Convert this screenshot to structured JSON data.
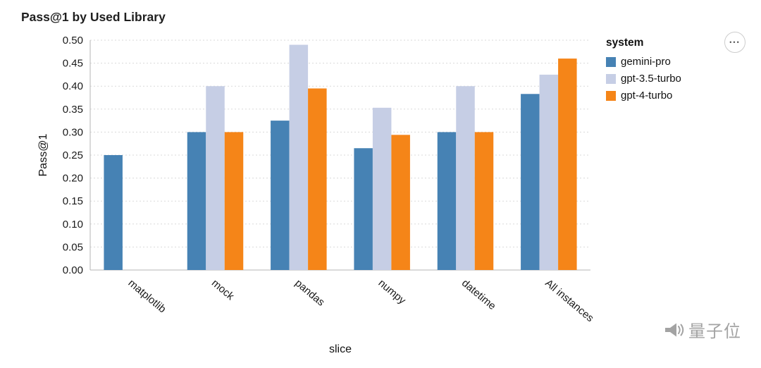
{
  "chart_data": {
    "type": "bar",
    "title": "Pass@1 by Used Library",
    "xlabel": "slice",
    "ylabel": "Pass@1",
    "ylim": [
      0,
      0.5
    ],
    "ytick_step": 0.05,
    "grid": true,
    "legend_position": "right",
    "legend_title": "system",
    "categories": [
      "matplotlib",
      "mock",
      "pandas",
      "numpy",
      "datetime",
      "All instances"
    ],
    "series": [
      {
        "name": "gemini-pro",
        "color": "#4682b4",
        "values": [
          0.25,
          0.3,
          0.325,
          0.265,
          0.3,
          0.383
        ]
      },
      {
        "name": "gpt-3.5-turbo",
        "color": "#c6cee5",
        "values": [
          0,
          0.4,
          0.49,
          0.353,
          0.4,
          0.425
        ]
      },
      {
        "name": "gpt-4-turbo",
        "color": "#f58518",
        "values": [
          0,
          0.3,
          0.395,
          0.294,
          0.3,
          0.46
        ]
      }
    ],
    "axis_color": "#b5b5b5",
    "grid_color": "#d9d9d9",
    "text_color": "#1a1a1a"
  },
  "actions": {
    "menu_icon": "•••"
  },
  "watermark": {
    "text": "量子位"
  }
}
